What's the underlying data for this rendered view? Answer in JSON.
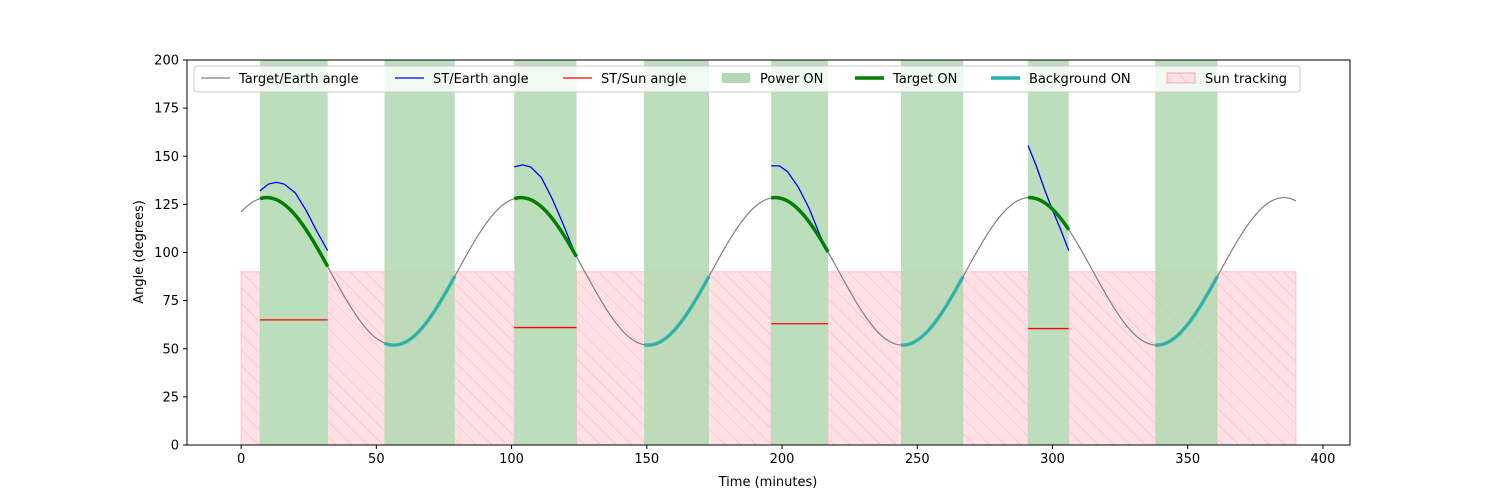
{
  "chart_data": {
    "type": "line",
    "title": "",
    "xlabel": "Time (minutes)",
    "ylabel": "Angle (degrees)",
    "xlim": [
      -20,
      410
    ],
    "ylim": [
      0,
      200
    ],
    "xticks": [
      0,
      50,
      100,
      150,
      200,
      250,
      300,
      350,
      400
    ],
    "yticks": [
      0,
      25,
      50,
      75,
      100,
      125,
      150,
      175,
      200
    ],
    "grid": false,
    "legend_position": "top",
    "target_earth_model": {
      "mean": 90.2,
      "amplitude": 38.3,
      "period_min": 94.0,
      "peak_at_min": 9.5,
      "t_start": 0,
      "t_end": 390
    },
    "series": [
      {
        "name": "Target/Earth angle",
        "color": "#808080",
        "style": "line"
      },
      {
        "name": "ST/Earth angle",
        "color": "#0000ff",
        "style": "line",
        "segments": [
          [
            [
              7,
              132
            ],
            [
              10,
              135.5
            ],
            [
              13,
              136.5
            ],
            [
              16,
              135.5
            ],
            [
              20,
              131
            ],
            [
              24,
              122
            ],
            [
              28,
              111
            ],
            [
              32,
              101
            ]
          ],
          [
            [
              101,
              144.5
            ],
            [
              104,
              145.5
            ],
            [
              107,
              144.5
            ],
            [
              111,
              139
            ],
            [
              115,
              128
            ],
            [
              119,
              115
            ],
            [
              123,
              101
            ]
          ],
          [
            [
              196,
              145
            ],
            [
              199,
              145
            ],
            [
              202,
              142
            ],
            [
              206,
              134
            ],
            [
              210,
              123
            ],
            [
              214,
              109
            ],
            [
              217,
              100
            ]
          ],
          [
            [
              291,
              155.5
            ],
            [
              294,
              145
            ],
            [
              297,
              133
            ],
            [
              300,
              122
            ],
            [
              303,
              112
            ],
            [
              306,
              101
            ]
          ]
        ]
      },
      {
        "name": "ST/Sun angle",
        "color": "#ff0000",
        "style": "line",
        "segments": [
          [
            [
              7,
              65
            ],
            [
              32,
              65
            ]
          ],
          [
            [
              101,
              61
            ],
            [
              124,
              61
            ]
          ],
          [
            [
              196,
              63
            ],
            [
              217,
              63
            ]
          ],
          [
            [
              291,
              60.5
            ],
            [
              306,
              60.5
            ]
          ]
        ]
      },
      {
        "name": "Power ON",
        "color": "#b2d8b2",
        "style": "span",
        "intervals": [
          [
            7,
            32
          ],
          [
            53,
            79
          ],
          [
            101,
            124
          ],
          [
            149,
            173
          ],
          [
            196,
            217
          ],
          [
            244,
            267
          ],
          [
            291,
            306
          ],
          [
            338,
            361
          ]
        ]
      },
      {
        "name": "Target ON",
        "color": "#008000",
        "style": "thick",
        "intervals": [
          [
            7,
            32
          ],
          [
            101,
            124
          ],
          [
            196,
            217
          ],
          [
            291,
            306
          ]
        ]
      },
      {
        "name": "Background ON",
        "color": "#20b2aa",
        "style": "thick",
        "intervals": [
          [
            53,
            79
          ],
          [
            149,
            173
          ],
          [
            244,
            267
          ],
          [
            338,
            361
          ]
        ]
      },
      {
        "name": "Sun tracking",
        "color": "#ffb6c1",
        "style": "hatched-span",
        "y_top": 90,
        "intervals": [
          [
            0,
            7
          ],
          [
            32,
            101
          ],
          [
            124,
            196
          ],
          [
            217,
            291
          ],
          [
            306,
            390
          ]
        ]
      }
    ]
  }
}
